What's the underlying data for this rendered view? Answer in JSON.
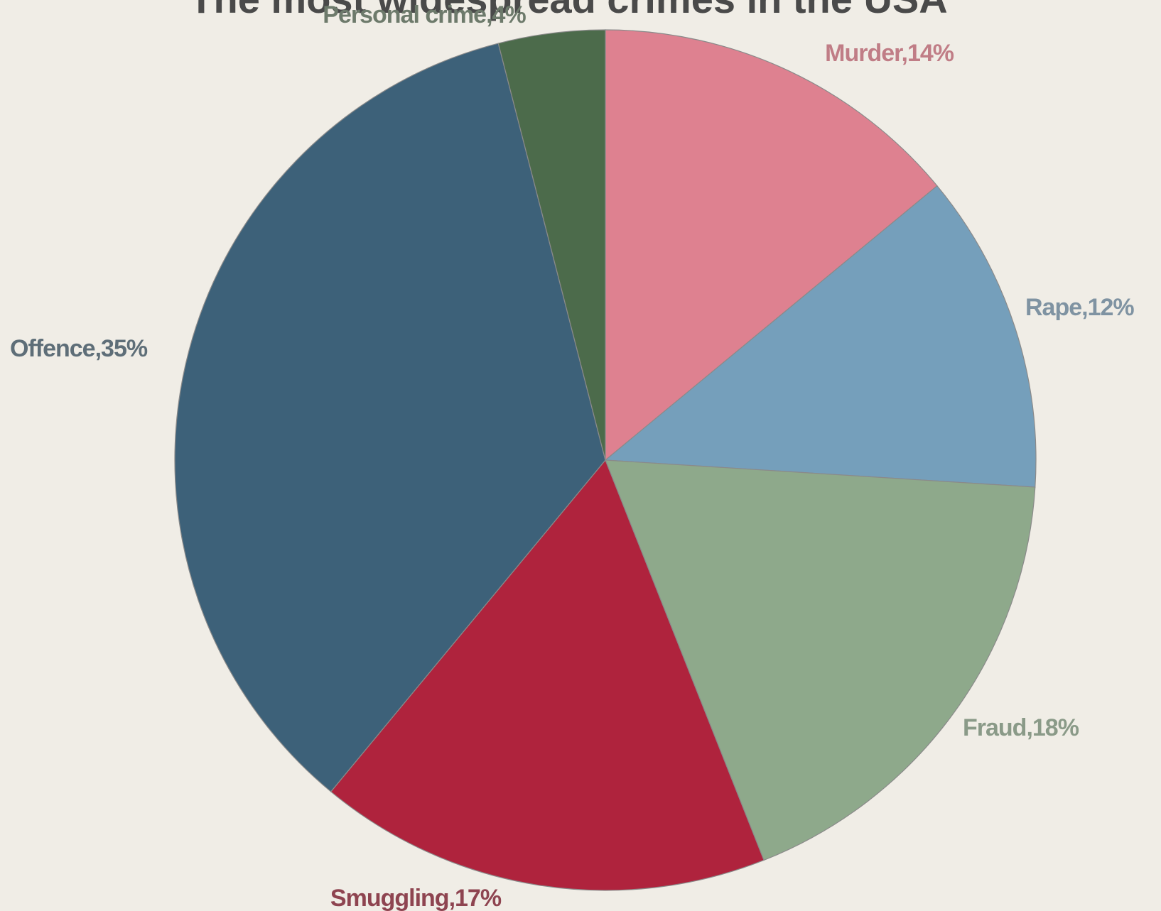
{
  "chart_data": {
    "type": "pie",
    "title": "The most widespread crimes in the USA",
    "slices": [
      {
        "label": "Murder,14%",
        "category": "Murder",
        "value": 14,
        "color": "#de8190",
        "label_color": "#c07d86"
      },
      {
        "label": "Rape,12%",
        "category": "Rape",
        "value": 12,
        "color": "#759fbb",
        "label_color": "#7f93a2"
      },
      {
        "label": "Fraud,18%",
        "category": "Fraud",
        "value": 18,
        "color": "#8ea98b",
        "label_color": "#8a9a88"
      },
      {
        "label": "Smuggling,17%",
        "category": "Smuggling",
        "value": 17,
        "color": "#af233d",
        "label_color": "#8e4450"
      },
      {
        "label": "Offence,35%",
        "category": "Offence",
        "value": 35,
        "color": "#3d6179",
        "label_color": "#5e6e78"
      },
      {
        "label": "Personal crime,4%",
        "category": "Personal crime",
        "value": 4,
        "color": "#4c6b4b",
        "label_color": "#6d7a6b"
      }
    ],
    "start_angle": "12 o'clock",
    "direction": "clockwise"
  }
}
